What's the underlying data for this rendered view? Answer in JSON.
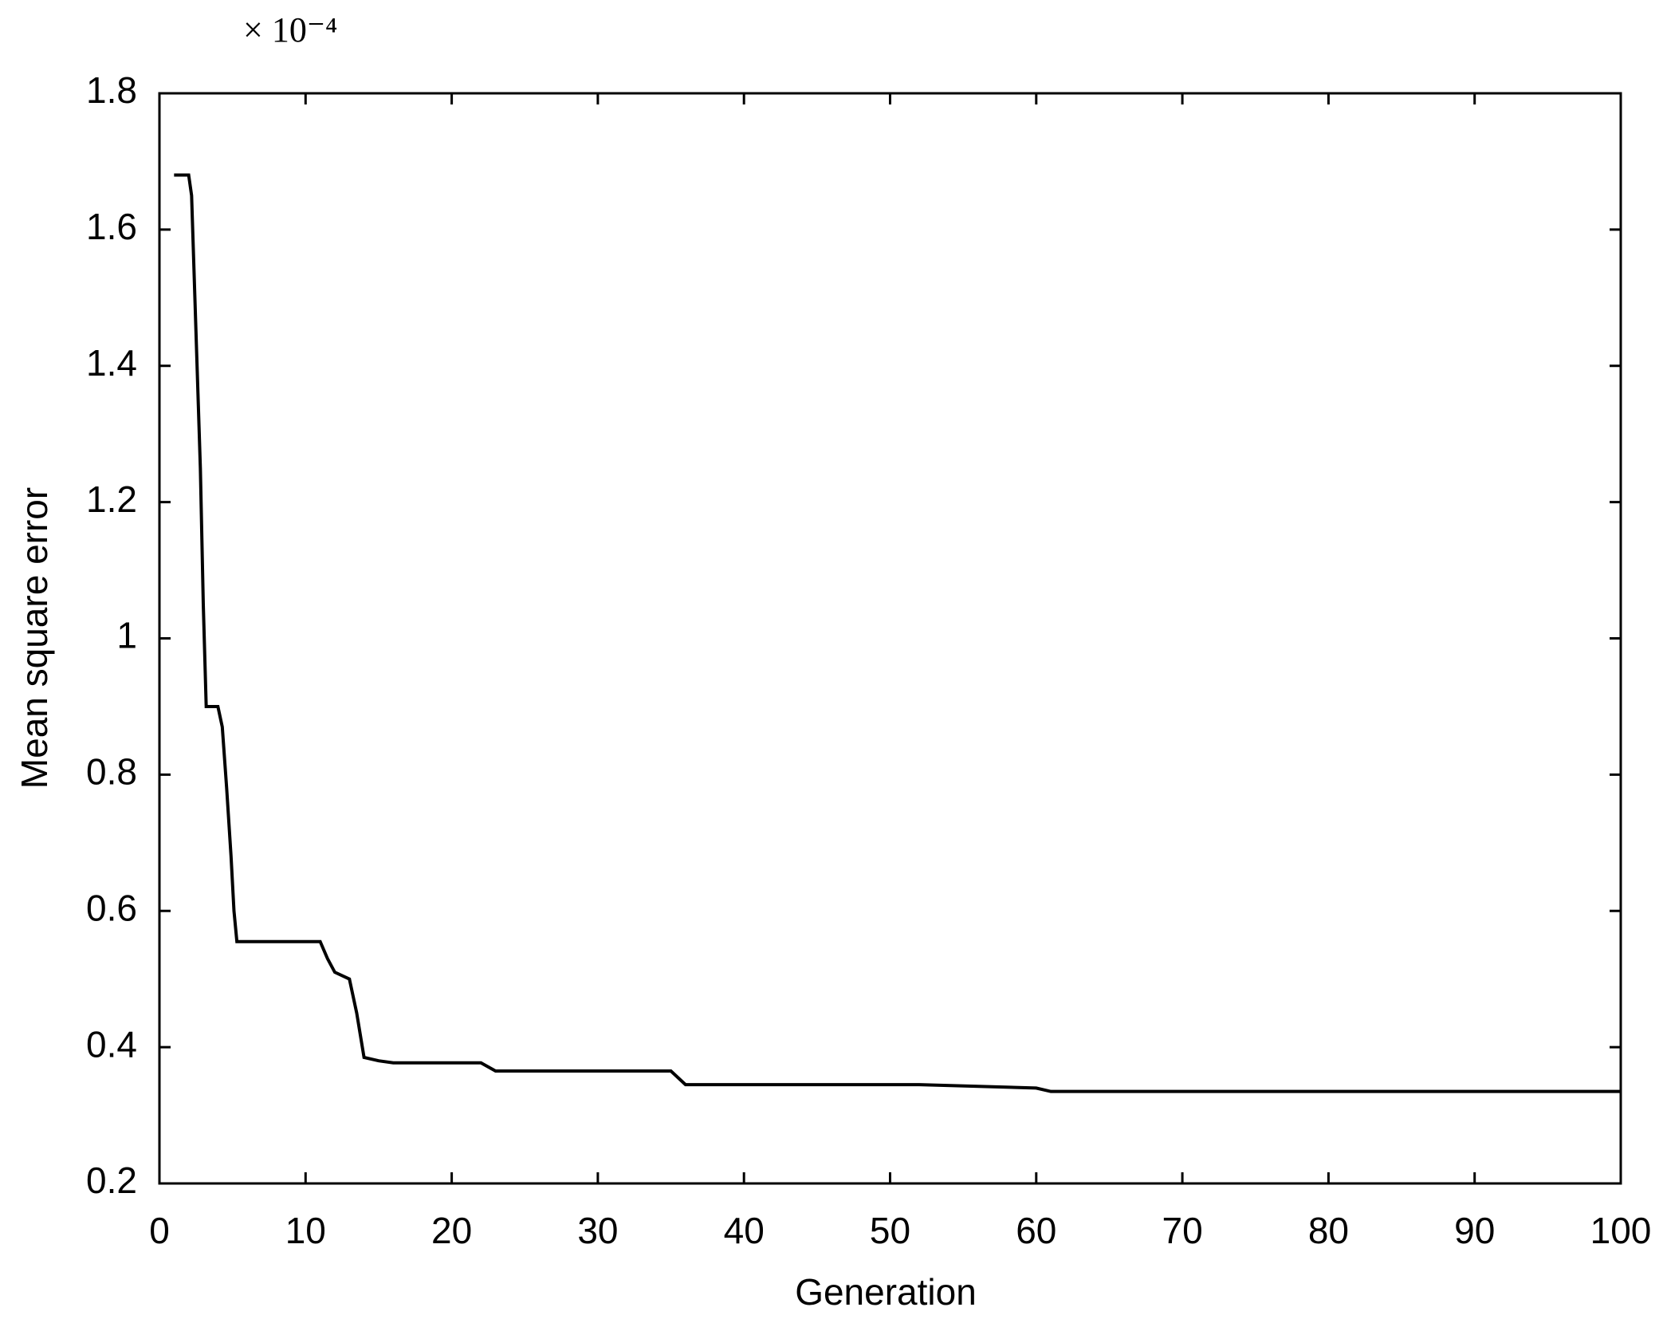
{
  "chart_data": {
    "type": "line",
    "y_scale_label": "× 10⁻⁴",
    "xlabel": "Generation",
    "ylabel": "Mean square error",
    "x": [
      1,
      2,
      2.2,
      2.5,
      2.8,
      3,
      3.2,
      4,
      4.3,
      4.6,
      4.9,
      5.1,
      5.3,
      11,
      11.5,
      12,
      13,
      13.5,
      14,
      15,
      16,
      22,
      23,
      35,
      36,
      52,
      60,
      61,
      100
    ],
    "series": [
      {
        "name": "Mean square error",
        "color": "#000000",
        "values": [
          1.68,
          1.68,
          1.65,
          1.45,
          1.25,
          1.05,
          0.9,
          0.9,
          0.87,
          0.78,
          0.68,
          0.6,
          0.555,
          0.555,
          0.53,
          0.51,
          0.5,
          0.45,
          0.385,
          0.38,
          0.377,
          0.377,
          0.365,
          0.365,
          0.345,
          0.345,
          0.34,
          0.335,
          0.335
        ]
      }
    ],
    "xlim": [
      0,
      100
    ],
    "xticks": [
      0,
      10,
      20,
      30,
      40,
      50,
      60,
      70,
      80,
      90,
      100
    ],
    "ylim": [
      0.2,
      1.8
    ],
    "yticks": [
      0.2,
      0.4,
      0.6,
      0.8,
      1,
      1.2,
      1.4,
      1.6,
      1.8
    ],
    "grid": false
  }
}
